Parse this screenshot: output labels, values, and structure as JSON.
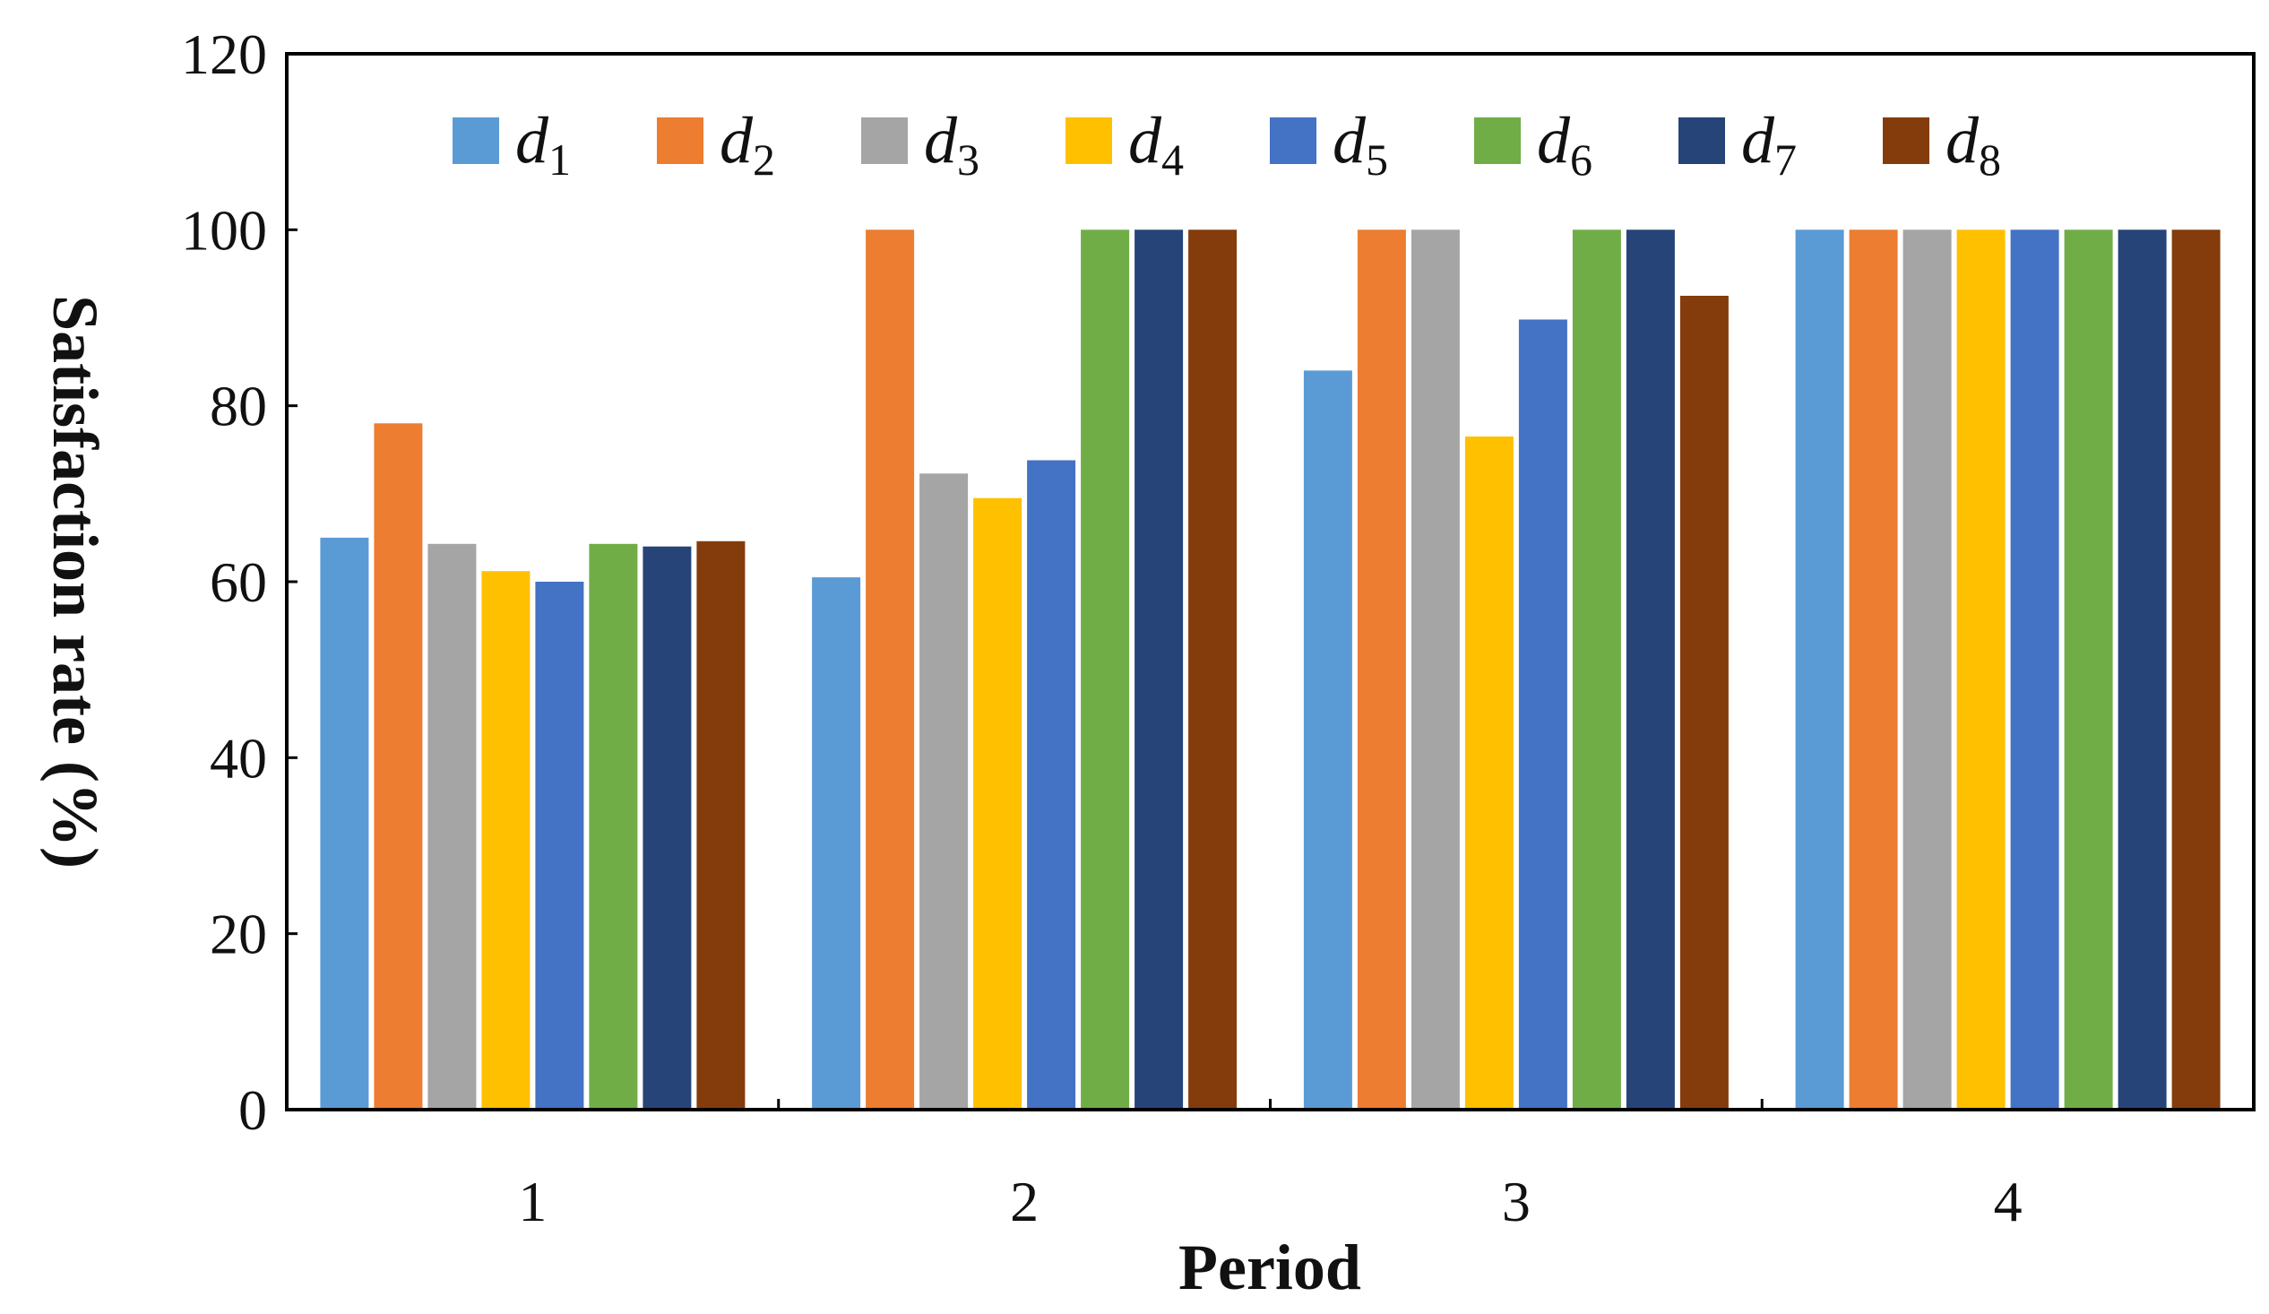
{
  "chart_data": {
    "type": "bar",
    "title": "",
    "xlabel": "Period",
    "ylabel": "Satisfaction rate (%)",
    "ylim": [
      0,
      120
    ],
    "yticks": [
      0,
      20,
      40,
      60,
      80,
      100,
      120
    ],
    "grid": false,
    "legend_position": "top",
    "categories": [
      "1",
      "2",
      "3",
      "4"
    ],
    "series": [
      {
        "name": "d1",
        "base": "d",
        "sub": "1",
        "color": "#5B9BD5",
        "values": [
          65,
          60.5,
          84,
          100
        ]
      },
      {
        "name": "d2",
        "base": "d",
        "sub": "2",
        "color": "#ED7D31",
        "values": [
          78,
          100,
          100,
          100
        ]
      },
      {
        "name": "d3",
        "base": "d",
        "sub": "3",
        "color": "#A5A5A5",
        "values": [
          64.3,
          72.3,
          100,
          100
        ]
      },
      {
        "name": "d4",
        "base": "d",
        "sub": "4",
        "color": "#FFC000",
        "values": [
          61.2,
          69.5,
          76.5,
          100
        ]
      },
      {
        "name": "d5",
        "base": "d",
        "sub": "5",
        "color": "#4472C4",
        "values": [
          60,
          73.8,
          89.8,
          100
        ]
      },
      {
        "name": "d6",
        "base": "d",
        "sub": "6",
        "color": "#70AD47",
        "values": [
          64.3,
          100,
          100,
          100
        ]
      },
      {
        "name": "d7",
        "base": "d",
        "sub": "7",
        "color": "#264478",
        "values": [
          64,
          100,
          100,
          100
        ]
      },
      {
        "name": "d8",
        "base": "d",
        "sub": "8",
        "color": "#843C0C",
        "values": [
          64.6,
          100,
          92.5,
          100
        ]
      }
    ]
  }
}
